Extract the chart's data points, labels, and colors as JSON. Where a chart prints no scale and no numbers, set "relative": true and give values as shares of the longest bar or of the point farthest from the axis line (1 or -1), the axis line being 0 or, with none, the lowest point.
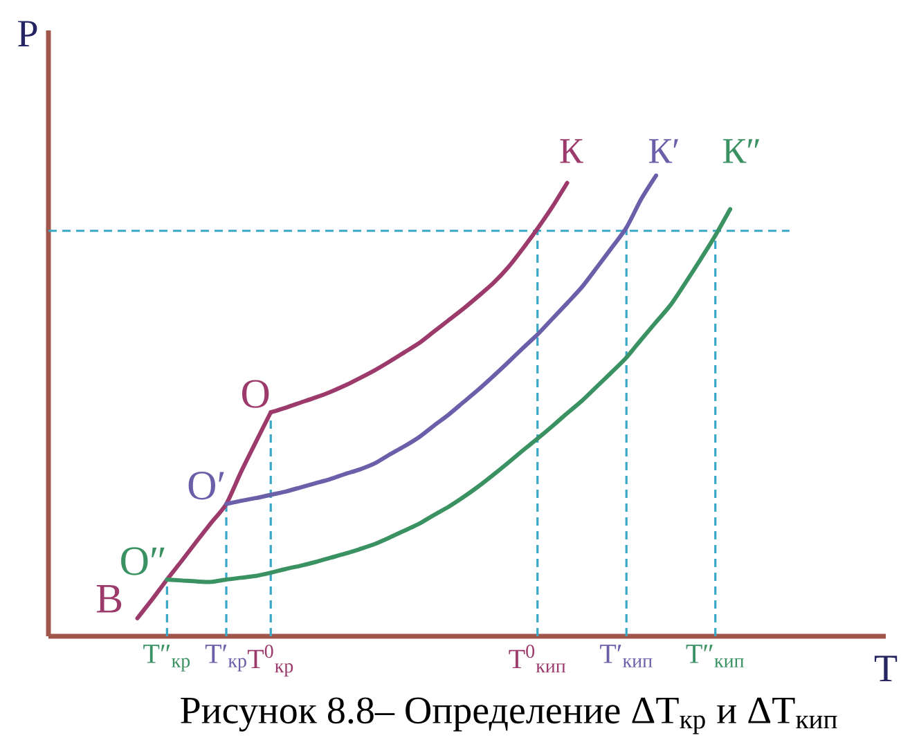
{
  "chart_data": {
    "type": "line",
    "relative": true,
    "xlabel": "T",
    "ylabel": "P",
    "tick_labels": "x",
    "categories": [
      null,
      null,
      null,
      null,
      null,
      null,
      null,
      "T″$_{кр}$",
      null,
      null,
      null,
      "T′$_{кр}$",
      null,
      null,
      "T$^{0}$$_{кр}$",
      null,
      null,
      null,
      null,
      null,
      null,
      null,
      null,
      null,
      null,
      null,
      null,
      null,
      null,
      null,
      null,
      null,
      "T$^{0}$$_{кип}$",
      null,
      null,
      null,
      null,
      null,
      "T′$_{кип}$",
      null,
      null,
      null,
      null,
      null,
      "T″$_{кип}$",
      null,
      null,
      null,
      null,
      null
    ],
    "series": [
      {
        "name": "В",
        "color": "#9b3a6b",
        "values": [
          null,
          null,
          null,
          null,
          null,
          0.039,
          0.08,
          0.123,
          0.164,
          0.206,
          0.247,
          0.287,
          0.357,
          0.422,
          0.486,
          null,
          null,
          null,
          null,
          null,
          null,
          null,
          null,
          null,
          null,
          null,
          null,
          null,
          null,
          null,
          null,
          null,
          null,
          null,
          null,
          null,
          null,
          null,
          null,
          null,
          null,
          null,
          null,
          null,
          null,
          null,
          null,
          null,
          null,
          null
        ]
      },
      {
        "name": "К",
        "color": "#9b3a6b",
        "values": [
          null,
          null,
          null,
          null,
          null,
          null,
          null,
          null,
          null,
          null,
          null,
          null,
          null,
          null,
          0.486,
          0.496,
          0.507,
          0.518,
          0.53,
          0.544,
          0.56,
          0.577,
          0.596,
          0.616,
          0.636,
          0.661,
          0.686,
          0.711,
          0.738,
          0.766,
          0.8,
          0.841,
          0.885,
          0.932,
          0.984,
          null,
          null,
          null,
          null,
          null,
          null,
          null,
          null,
          null,
          null,
          null,
          null,
          null,
          null,
          null
        ]
      },
      {
        "name": "К′",
        "color": "#6a60aa",
        "values": [
          null,
          null,
          null,
          null,
          null,
          null,
          null,
          null,
          null,
          null,
          null,
          0.287,
          0.294,
          0.3,
          0.307,
          0.314,
          0.323,
          0.332,
          0.341,
          0.352,
          0.362,
          0.375,
          0.394,
          0.412,
          0.432,
          0.457,
          0.481,
          0.508,
          0.535,
          0.564,
          0.594,
          0.625,
          0.655,
          0.689,
          0.723,
          0.758,
          0.8,
          0.843,
          0.887,
          0.949,
          1.0,
          null,
          null,
          null,
          null,
          null,
          null,
          null,
          null,
          null
        ]
      },
      {
        "name": "К″",
        "color": "#3a9162",
        "values": [
          null,
          null,
          null,
          null,
          null,
          null,
          null,
          0.123,
          0.121,
          0.119,
          0.118,
          0.123,
          0.127,
          0.131,
          0.138,
          0.146,
          0.153,
          0.161,
          0.17,
          0.179,
          0.189,
          0.2,
          0.214,
          0.229,
          0.244,
          0.263,
          0.281,
          0.302,
          0.325,
          0.35,
          0.376,
          0.403,
          0.429,
          0.456,
          0.484,
          0.511,
          0.542,
          0.573,
          0.605,
          0.644,
          0.682,
          0.72,
          0.768,
          0.818,
          0.87,
          0.927,
          null,
          null,
          null,
          null
        ]
      }
    ],
    "ref_lines": [
      {
        "axis": "y",
        "value": 0.88,
        "color": "#3aa7c9",
        "line_style": "dashed"
      },
      {
        "axis": "x",
        "value": "T″$_{кр}$",
        "color": "#3aa7c9",
        "line_style": "dashed"
      },
      {
        "axis": "x",
        "value": "T′$_{кр}$",
        "color": "#3aa7c9",
        "line_style": "dashed"
      },
      {
        "axis": "x",
        "value": "T$^{0}$$_{кр}$",
        "color": "#3aa7c9",
        "line_style": "dashed"
      },
      {
        "axis": "x",
        "value": "T$^{0}$$_{кип}$",
        "color": "#3aa7c9",
        "line_style": "dashed"
      },
      {
        "axis": "x",
        "value": "T′$_{кип}$",
        "color": "#3aa7c9",
        "line_style": "dashed"
      },
      {
        "axis": "x",
        "value": "T″$_{кип}$",
        "color": "#3aa7c9",
        "line_style": "dashed"
      }
    ],
    "annotations": [
      {
        "text": "О",
        "x": "T$^{0}$$_{кр}$",
        "y": 0.486
      },
      {
        "text": "О′",
        "x": "T′$_{кр}$",
        "y": 0.287
      },
      {
        "text": "О″",
        "x": "T″$_{кр}$",
        "y": 0.123
      },
      "Рисунок 8.8– Определение ΔT$_{кр}$ и ΔT$_{кип}$"
    ]
  }
}
